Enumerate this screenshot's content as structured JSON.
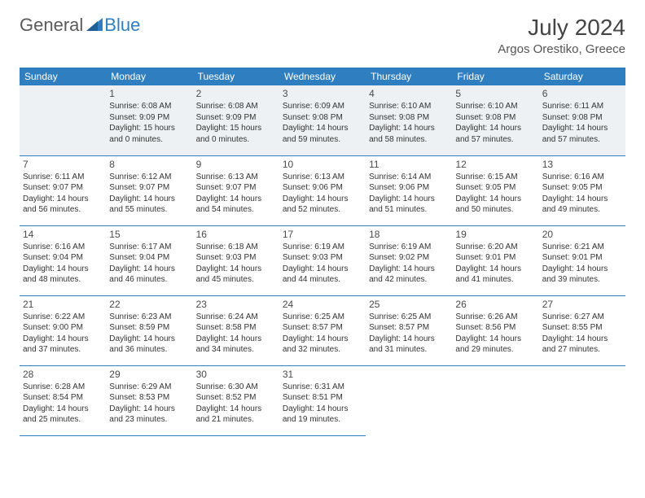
{
  "logo": {
    "text1": "General",
    "text2": "Blue"
  },
  "title": "July 2024",
  "location": "Argos Orestiko, Greece",
  "colors": {
    "headerBg": "#2f7ec0",
    "headerText": "#ffffff",
    "borderColor": "#2f7ec0",
    "shadeRow": "#eef1f3"
  },
  "weekdays": [
    "Sunday",
    "Monday",
    "Tuesday",
    "Wednesday",
    "Thursday",
    "Friday",
    "Saturday"
  ],
  "weeks": [
    [
      null,
      {
        "n": "1",
        "sr": "6:08 AM",
        "ss": "9:09 PM",
        "dl": "15 hours and 0 minutes."
      },
      {
        "n": "2",
        "sr": "6:08 AM",
        "ss": "9:09 PM",
        "dl": "15 hours and 0 minutes."
      },
      {
        "n": "3",
        "sr": "6:09 AM",
        "ss": "9:08 PM",
        "dl": "14 hours and 59 minutes."
      },
      {
        "n": "4",
        "sr": "6:10 AM",
        "ss": "9:08 PM",
        "dl": "14 hours and 58 minutes."
      },
      {
        "n": "5",
        "sr": "6:10 AM",
        "ss": "9:08 PM",
        "dl": "14 hours and 57 minutes."
      },
      {
        "n": "6",
        "sr": "6:11 AM",
        "ss": "9:08 PM",
        "dl": "14 hours and 57 minutes."
      }
    ],
    [
      {
        "n": "7",
        "sr": "6:11 AM",
        "ss": "9:07 PM",
        "dl": "14 hours and 56 minutes."
      },
      {
        "n": "8",
        "sr": "6:12 AM",
        "ss": "9:07 PM",
        "dl": "14 hours and 55 minutes."
      },
      {
        "n": "9",
        "sr": "6:13 AM",
        "ss": "9:07 PM",
        "dl": "14 hours and 54 minutes."
      },
      {
        "n": "10",
        "sr": "6:13 AM",
        "ss": "9:06 PM",
        "dl": "14 hours and 52 minutes."
      },
      {
        "n": "11",
        "sr": "6:14 AM",
        "ss": "9:06 PM",
        "dl": "14 hours and 51 minutes."
      },
      {
        "n": "12",
        "sr": "6:15 AM",
        "ss": "9:05 PM",
        "dl": "14 hours and 50 minutes."
      },
      {
        "n": "13",
        "sr": "6:16 AM",
        "ss": "9:05 PM",
        "dl": "14 hours and 49 minutes."
      }
    ],
    [
      {
        "n": "14",
        "sr": "6:16 AM",
        "ss": "9:04 PM",
        "dl": "14 hours and 48 minutes."
      },
      {
        "n": "15",
        "sr": "6:17 AM",
        "ss": "9:04 PM",
        "dl": "14 hours and 46 minutes."
      },
      {
        "n": "16",
        "sr": "6:18 AM",
        "ss": "9:03 PM",
        "dl": "14 hours and 45 minutes."
      },
      {
        "n": "17",
        "sr": "6:19 AM",
        "ss": "9:03 PM",
        "dl": "14 hours and 44 minutes."
      },
      {
        "n": "18",
        "sr": "6:19 AM",
        "ss": "9:02 PM",
        "dl": "14 hours and 42 minutes."
      },
      {
        "n": "19",
        "sr": "6:20 AM",
        "ss": "9:01 PM",
        "dl": "14 hours and 41 minutes."
      },
      {
        "n": "20",
        "sr": "6:21 AM",
        "ss": "9:01 PM",
        "dl": "14 hours and 39 minutes."
      }
    ],
    [
      {
        "n": "21",
        "sr": "6:22 AM",
        "ss": "9:00 PM",
        "dl": "14 hours and 37 minutes."
      },
      {
        "n": "22",
        "sr": "6:23 AM",
        "ss": "8:59 PM",
        "dl": "14 hours and 36 minutes."
      },
      {
        "n": "23",
        "sr": "6:24 AM",
        "ss": "8:58 PM",
        "dl": "14 hours and 34 minutes."
      },
      {
        "n": "24",
        "sr": "6:25 AM",
        "ss": "8:57 PM",
        "dl": "14 hours and 32 minutes."
      },
      {
        "n": "25",
        "sr": "6:25 AM",
        "ss": "8:57 PM",
        "dl": "14 hours and 31 minutes."
      },
      {
        "n": "26",
        "sr": "6:26 AM",
        "ss": "8:56 PM",
        "dl": "14 hours and 29 minutes."
      },
      {
        "n": "27",
        "sr": "6:27 AM",
        "ss": "8:55 PM",
        "dl": "14 hours and 27 minutes."
      }
    ],
    [
      {
        "n": "28",
        "sr": "6:28 AM",
        "ss": "8:54 PM",
        "dl": "14 hours and 25 minutes."
      },
      {
        "n": "29",
        "sr": "6:29 AM",
        "ss": "8:53 PM",
        "dl": "14 hours and 23 minutes."
      },
      {
        "n": "30",
        "sr": "6:30 AM",
        "ss": "8:52 PM",
        "dl": "14 hours and 21 minutes."
      },
      {
        "n": "31",
        "sr": "6:31 AM",
        "ss": "8:51 PM",
        "dl": "14 hours and 19 minutes."
      },
      null,
      null,
      null
    ]
  ],
  "labels": {
    "sunrise": "Sunrise:",
    "sunset": "Sunset:",
    "daylight": "Daylight:"
  }
}
